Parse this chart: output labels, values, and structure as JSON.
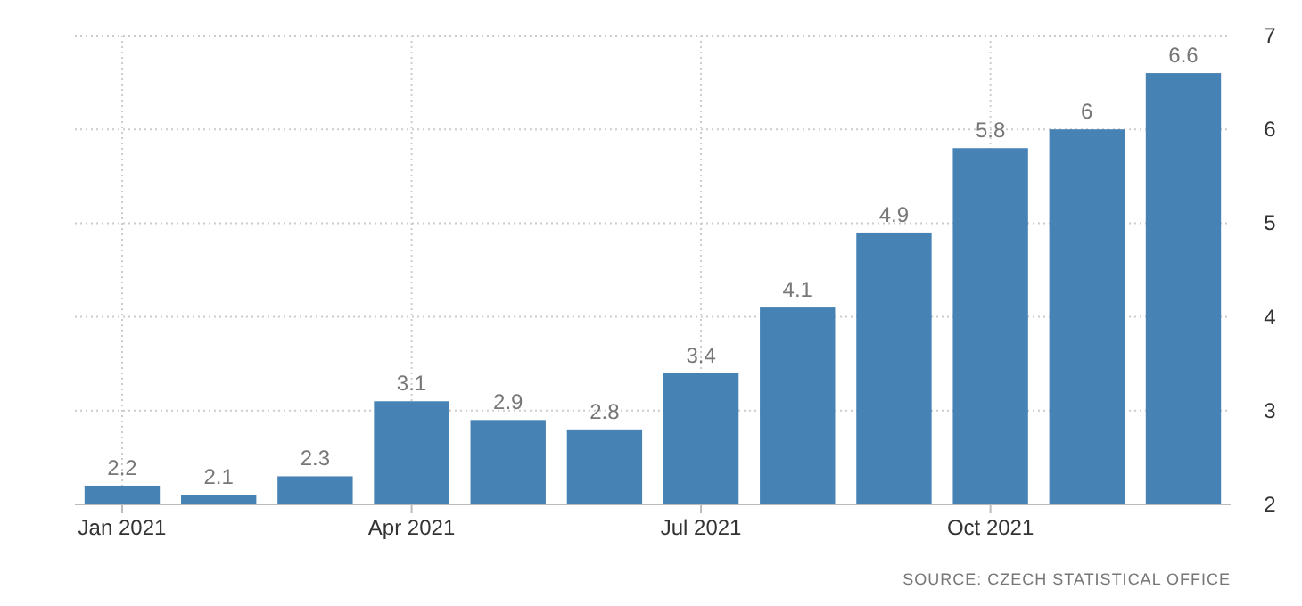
{
  "chart_data": {
    "type": "bar",
    "categories": [
      "Jan 2021",
      null,
      null,
      "Apr 2021",
      null,
      null,
      "Jul 2021",
      null,
      null,
      "Oct 2021",
      null,
      null
    ],
    "values": [
      2.2,
      2.1,
      2.3,
      3.1,
      2.9,
      2.8,
      3.4,
      4.1,
      4.9,
      5.8,
      6,
      6.6
    ],
    "color": "#4682b4",
    "ylim": [
      2,
      7
    ],
    "yticks": [
      2,
      3,
      4,
      5,
      6,
      7
    ],
    "grid": true,
    "data_labels": true,
    "annotations": [
      "SOURCE: CZECH STATISTICAL OFFICE"
    ]
  }
}
